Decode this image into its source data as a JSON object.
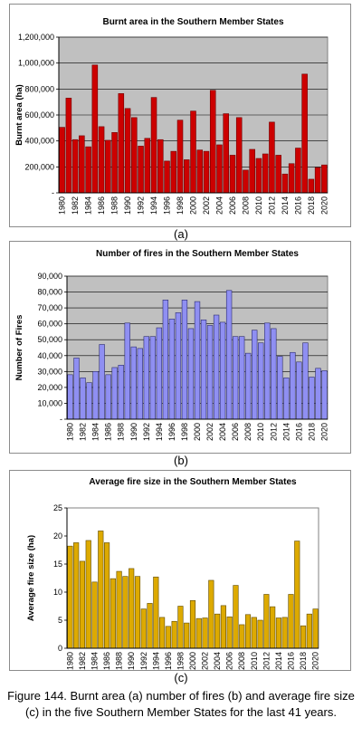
{
  "figure": {
    "caption": "Figure 144. Burnt area (a) number of fires (b) and average fire size (c) in the five Southern Member States for the last 41 years."
  },
  "chart_data": [
    {
      "type": "bar",
      "panel_label": "(a)",
      "title": "Burnt area in the Southern Member States",
      "ylabel": "Burnt area (ha)",
      "xlabel": "",
      "ylim": [
        0,
        1200000
      ],
      "yticks": [
        0,
        200000,
        400000,
        600000,
        800000,
        1000000,
        1200000
      ],
      "ytick_labels": [
        "-",
        "200,000",
        "400,000",
        "600,000",
        "800,000",
        "1,000,000",
        "1,200,000"
      ],
      "x_tick_labels": [
        "1980",
        "1982",
        "1984",
        "1986",
        "1988",
        "1990",
        "1992",
        "1994",
        "1996",
        "1998",
        "2000",
        "2002",
        "2004",
        "2006",
        "2008",
        "2010",
        "2012",
        "2014",
        "2016",
        "2018",
        "2020"
      ],
      "categories": [
        "1980",
        "1981",
        "1982",
        "1983",
        "1984",
        "1985",
        "1986",
        "1987",
        "1988",
        "1989",
        "1990",
        "1991",
        "1992",
        "1993",
        "1994",
        "1995",
        "1996",
        "1997",
        "1998",
        "1999",
        "2000",
        "2001",
        "2002",
        "2003",
        "2004",
        "2005",
        "2006",
        "2007",
        "2008",
        "2009",
        "2010",
        "2011",
        "2012",
        "2013",
        "2014",
        "2015",
        "2016",
        "2017",
        "2018",
        "2019",
        "2020"
      ],
      "values": [
        505000,
        730000,
        410000,
        440000,
        355000,
        985000,
        510000,
        405000,
        465000,
        765000,
        650000,
        580000,
        360000,
        420000,
        735000,
        410000,
        245000,
        320000,
        560000,
        255000,
        630000,
        330000,
        320000,
        790000,
        370000,
        610000,
        290000,
        580000,
        175000,
        335000,
        265000,
        300000,
        545000,
        290000,
        145000,
        225000,
        345000,
        915000,
        105000,
        195000,
        215000
      ],
      "colors": {
        "fill": "#cc0000",
        "edge": "#6e0000",
        "plot_bg": "#c0c0c0"
      },
      "grid": true
    },
    {
      "type": "bar",
      "panel_label": "(b)",
      "title": "Number of fires in the Southern Member States",
      "ylabel": "Number of Fires",
      "xlabel": "",
      "ylim": [
        0,
        90000
      ],
      "yticks": [
        0,
        10000,
        20000,
        30000,
        40000,
        50000,
        60000,
        70000,
        80000,
        90000
      ],
      "ytick_labels": [
        "-",
        "10,000",
        "20,000",
        "30,000",
        "40,000",
        "50,000",
        "60,000",
        "70,000",
        "80,000",
        "90,000"
      ],
      "x_tick_labels": [
        "1980",
        "1982",
        "1984",
        "1986",
        "1988",
        "1990",
        "1992",
        "1994",
        "1996",
        "1998",
        "2000",
        "2002",
        "2004",
        "2006",
        "2008",
        "2010",
        "2012",
        "2014",
        "2016",
        "2018",
        "2020"
      ],
      "categories": [
        "1980",
        "1981",
        "1982",
        "1983",
        "1984",
        "1985",
        "1986",
        "1987",
        "1988",
        "1989",
        "1990",
        "1991",
        "1992",
        "1993",
        "1994",
        "1995",
        "1996",
        "1997",
        "1998",
        "1999",
        "2000",
        "2001",
        "2002",
        "2003",
        "2004",
        "2005",
        "2006",
        "2007",
        "2008",
        "2009",
        "2010",
        "2011",
        "2012",
        "2013",
        "2014",
        "2015",
        "2016",
        "2017",
        "2018",
        "2019",
        "2020"
      ],
      "values": [
        28000,
        38500,
        26000,
        23000,
        30000,
        47000,
        28000,
        32500,
        34000,
        60500,
        45500,
        44500,
        52000,
        52000,
        57500,
        75000,
        63000,
        67000,
        75000,
        57000,
        74000,
        62500,
        59000,
        65500,
        61000,
        81000,
        52000,
        52000,
        41500,
        56000,
        48000,
        60500,
        57000,
        39500,
        26000,
        42000,
        36000,
        48000,
        26500,
        32000,
        30500
      ],
      "colors": {
        "fill": "#8f8ff2",
        "edge": "#2c2c6e",
        "plot_bg": "#c0c0c0"
      },
      "grid": true
    },
    {
      "type": "bar",
      "panel_label": "(c)",
      "title": "Average fire size in the Southern Member States",
      "ylabel": "Average fire size (ha)",
      "xlabel": "",
      "ylim": [
        0,
        25
      ],
      "yticks": [
        0,
        5,
        10,
        15,
        20,
        25
      ],
      "ytick_labels": [
        "0",
        "5",
        "10",
        "15",
        "20",
        "25"
      ],
      "x_tick_labels": [
        "1980",
        "1982",
        "1984",
        "1986",
        "1988",
        "1990",
        "1992",
        "1994",
        "1996",
        "1998",
        "2000",
        "2002",
        "2004",
        "2006",
        "2008",
        "2010",
        "2012",
        "2014",
        "2016",
        "2018",
        "2020"
      ],
      "categories": [
        "1980",
        "1981",
        "1982",
        "1983",
        "1984",
        "1985",
        "1986",
        "1987",
        "1988",
        "1989",
        "1990",
        "1991",
        "1992",
        "1993",
        "1994",
        "1995",
        "1996",
        "1997",
        "1998",
        "1999",
        "2000",
        "2001",
        "2002",
        "2003",
        "2004",
        "2005",
        "2006",
        "2007",
        "2008",
        "2009",
        "2010",
        "2011",
        "2012",
        "2013",
        "2014",
        "2015",
        "2016",
        "2017",
        "2018",
        "2019",
        "2020"
      ],
      "values": [
        18.2,
        18.8,
        15.5,
        19.2,
        11.8,
        20.9,
        18.8,
        12.4,
        13.7,
        12.8,
        14.2,
        12.8,
        7.0,
        8.0,
        12.7,
        5.5,
        3.9,
        4.8,
        7.5,
        4.5,
        8.5,
        5.3,
        5.4,
        12.1,
        6.1,
        7.6,
        5.6,
        11.2,
        4.2,
        6.0,
        5.5,
        5.0,
        9.6,
        7.4,
        5.4,
        5.5,
        9.6,
        19.1,
        4.0,
        6.1,
        7.0
      ],
      "colors": {
        "fill": "#ddaa00",
        "edge": "#5e4a00",
        "plot_bg": "#ffffff"
      },
      "grid": false
    }
  ]
}
